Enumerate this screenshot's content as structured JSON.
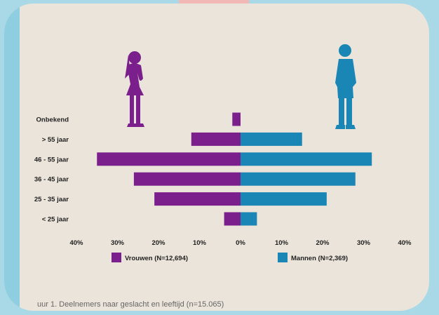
{
  "chart_data": {
    "type": "bar",
    "orientation": "horizontal-population-pyramid",
    "categories": [
      "Onbekend",
      "> 55 jaar",
      "46 - 55 jaar",
      "36 - 45 jaar",
      "25 - 35 jaar",
      "< 25 jaar"
    ],
    "series": [
      {
        "name": "Vrouwen (N=12,694)",
        "color": "#7a1f8c",
        "values": [
          2,
          12,
          35,
          26,
          21,
          4
        ]
      },
      {
        "name": "Mannen (N=2,369)",
        "color": "#1a86b5",
        "values": [
          0,
          15,
          32,
          28,
          21,
          4
        ]
      }
    ],
    "x_ticks": [
      "40%",
      "30%",
      "20%",
      "10%",
      "0%",
      "10%",
      "20%",
      "30%",
      "40%"
    ],
    "xlim": [
      -40,
      40
    ],
    "grid": false,
    "legend_position": "bottom",
    "caption": "uur 1. Deelnemers naar geslacht en leeftijd (n=15.065)",
    "icons": {
      "female": "woman-silhouette-icon",
      "male": "man-silhouette-icon"
    }
  }
}
